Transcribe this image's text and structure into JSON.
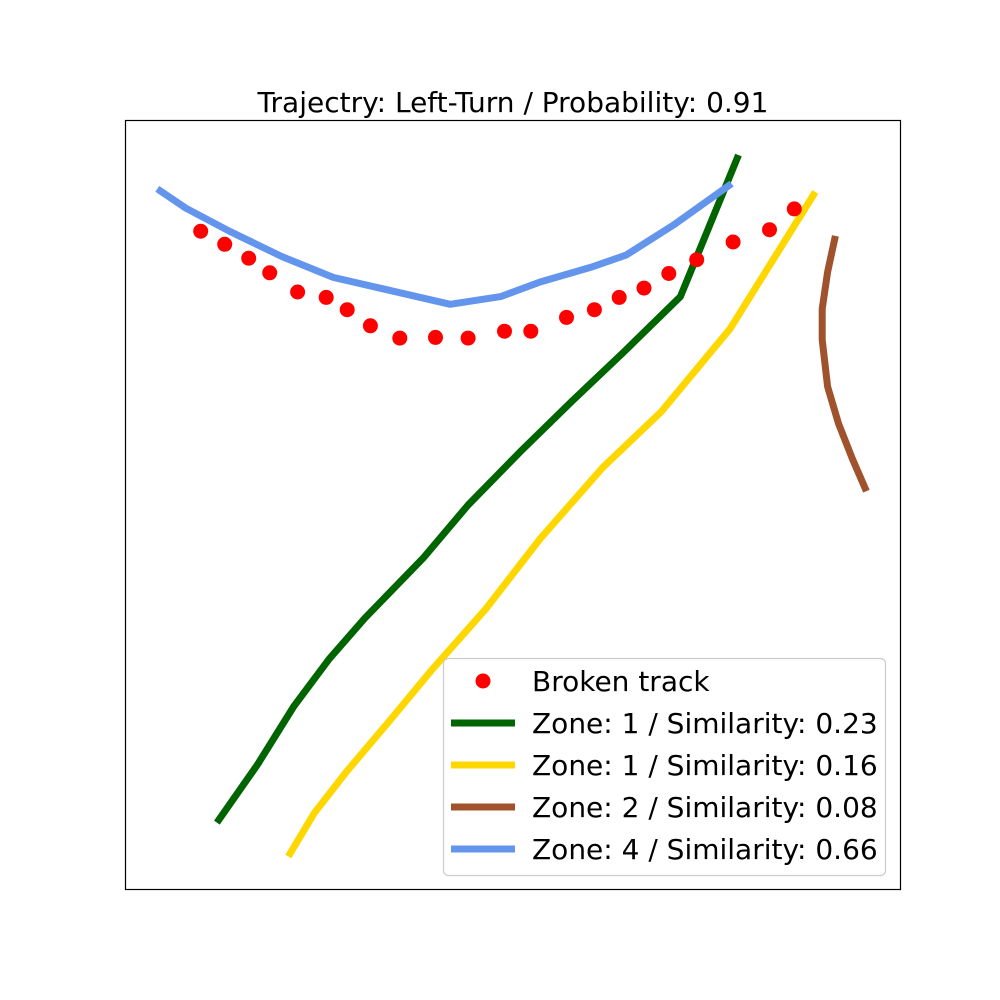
{
  "chart_data": {
    "type": "line",
    "title": "Trajectry: Left-Turn / Probability: 0.91",
    "xlabel": "",
    "ylabel": "",
    "axes_ticks_visible": false,
    "grid": false,
    "legend_position": "lower right",
    "xlim": [
      0,
      100
    ],
    "ylim": [
      0,
      100
    ],
    "scatter": {
      "name": "Broken track",
      "color": "#ff0000",
      "x": [
        9.7,
        12.8,
        15.9,
        18.6,
        22.2,
        25.9,
        28.6,
        31.6,
        35.4,
        40.0,
        44.2,
        48.9,
        52.3,
        56.9,
        60.5,
        63.7,
        66.9,
        70.1,
        73.7,
        78.4,
        83.1,
        86.3
      ],
      "y": [
        85.6,
        83.9,
        82.1,
        80.2,
        77.7,
        77.0,
        75.4,
        73.3,
        71.7,
        71.8,
        71.7,
        72.6,
        72.6,
        74.4,
        75.4,
        77.0,
        78.2,
        80.1,
        81.9,
        84.2,
        85.8,
        88.5
      ]
    },
    "series": [
      {
        "name": "Zone: 1 / Similarity: 0.23",
        "color": "#006400",
        "x": [
          11.8,
          17.0,
          21.7,
          26.3,
          30.9,
          38.5,
          44.2,
          51.0,
          57.6,
          64.3,
          71.6,
          79.1
        ],
        "y": [
          8.7,
          16.2,
          23.8,
          30.0,
          35.3,
          43.2,
          50.0,
          57.0,
          63.5,
          69.9,
          77.1,
          95.5
        ]
      },
      {
        "name": "Zone: 1 / Similarity: 0.16",
        "color": "#ffd700",
        "x": [
          21.0,
          24.4,
          28.5,
          33.7,
          39.4,
          46.5,
          53.5,
          61.6,
          69.1,
          78.0,
          89.0
        ],
        "y": [
          4.3,
          10.0,
          15.3,
          21.5,
          28.4,
          36.5,
          45.6,
          54.9,
          62.1,
          72.9,
          90.7
        ]
      },
      {
        "name": "Zone: 2 / Similarity: 0.08",
        "color": "#a0522d",
        "x": [
          91.6,
          90.6,
          89.9,
          89.9,
          90.6,
          92.0,
          93.8,
          95.6
        ],
        "y": [
          85.0,
          80.3,
          75.5,
          71.5,
          65.4,
          60.6,
          56.0,
          51.8
        ]
      },
      {
        "name": "Zone: 4 / Similarity: 0.66",
        "color": "#6495ed",
        "x": [
          4.1,
          7.8,
          13.4,
          20.2,
          26.8,
          41.9,
          48.4,
          53.5,
          60.0,
          64.6,
          70.7,
          78.2
        ],
        "y": [
          91.1,
          88.6,
          85.6,
          82.3,
          79.6,
          76.1,
          77.1,
          79.0,
          80.9,
          82.5,
          86.4,
          91.8
        ]
      }
    ]
  }
}
